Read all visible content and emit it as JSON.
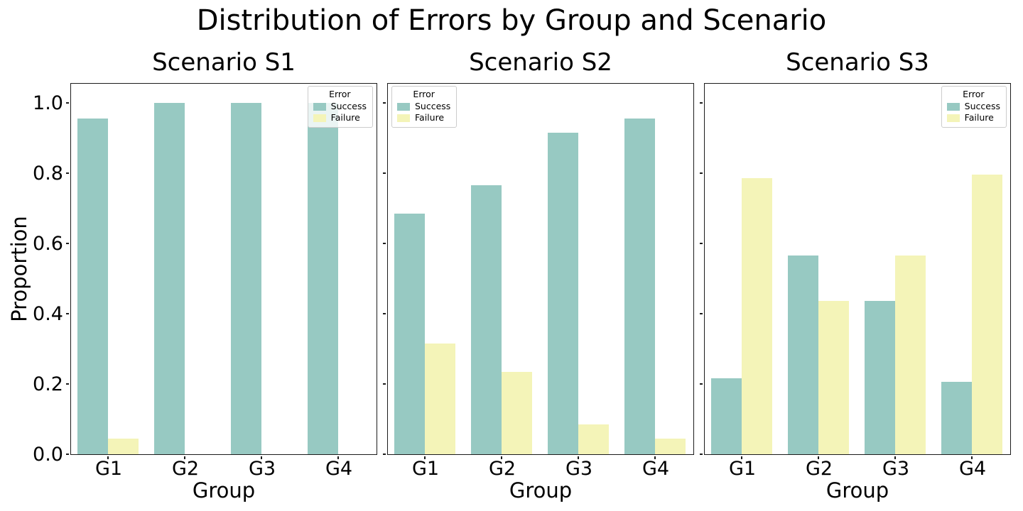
{
  "chart_data": {
    "type": "bar",
    "title": "Distribution of Errors by Group and Scenario",
    "xlabel": "Group",
    "ylabel": "Proportion",
    "categories": [
      "G1",
      "G2",
      "G3",
      "G4"
    ],
    "yticks": [
      0.0,
      0.2,
      0.4,
      0.6,
      0.8,
      1.0
    ],
    "ytick_labels": [
      "0.0",
      "0.2",
      "0.4",
      "0.6",
      "0.8",
      "1.0"
    ],
    "ylim": [
      0,
      1.06
    ],
    "grid": false,
    "legend": {
      "title": "Error",
      "entries": [
        {
          "label": "Success",
          "color": "#97C9C2"
        },
        {
          "label": "Failure",
          "color": "#F4F4B8"
        }
      ]
    },
    "subplots": [
      {
        "title": "Scenario S1",
        "legend_position": "right",
        "series": [
          {
            "name": "Success",
            "values": [
              0.955,
              1.0,
              1.0,
              1.0
            ]
          },
          {
            "name": "Failure",
            "values": [
              0.045,
              0.0,
              0.0,
              0.0
            ]
          }
        ]
      },
      {
        "title": "Scenario S2",
        "legend_position": "left",
        "series": [
          {
            "name": "Success",
            "values": [
              0.685,
              0.765,
              0.915,
              0.955
            ]
          },
          {
            "name": "Failure",
            "values": [
              0.315,
              0.235,
              0.085,
              0.045
            ]
          }
        ]
      },
      {
        "title": "Scenario S3",
        "legend_position": "right",
        "series": [
          {
            "name": "Success",
            "values": [
              0.215,
              0.565,
              0.435,
              0.205
            ]
          },
          {
            "name": "Failure",
            "values": [
              0.785,
              0.435,
              0.565,
              0.795
            ]
          }
        ]
      }
    ]
  }
}
